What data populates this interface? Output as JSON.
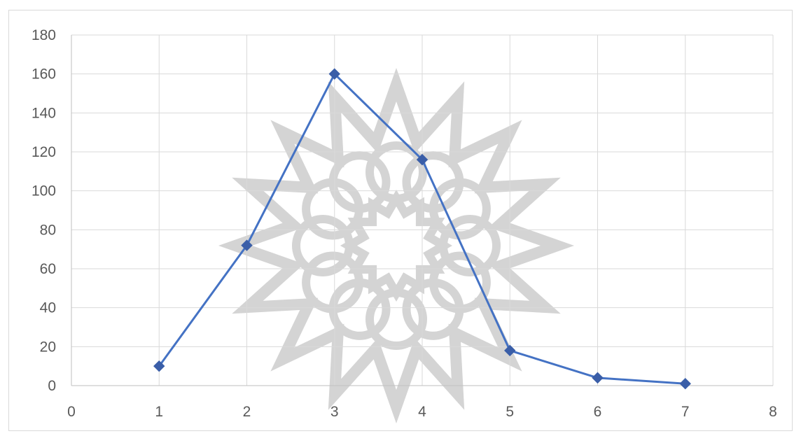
{
  "chart_data": {
    "type": "scatter",
    "title": "",
    "xlabel": "",
    "ylabel": "",
    "xlim": [
      0,
      8
    ],
    "ylim": [
      0,
      180
    ],
    "xticks": [
      0,
      1,
      2,
      3,
      4,
      5,
      6,
      7,
      8
    ],
    "yticks": [
      0,
      20,
      40,
      60,
      80,
      100,
      120,
      140,
      160,
      180
    ],
    "grid": true,
    "legend": "none",
    "series": [
      {
        "x": [
          1,
          2,
          3,
          4,
          5,
          6,
          7
        ],
        "y": [
          10,
          72,
          160,
          116,
          18,
          4,
          1
        ],
        "color": "#4472c4",
        "marker_color": "#3a5ea8",
        "marker": "diamond",
        "line": "straight"
      }
    ]
  },
  "watermark": {
    "type": "decorative-rosette",
    "color": "#d4d4d4"
  }
}
